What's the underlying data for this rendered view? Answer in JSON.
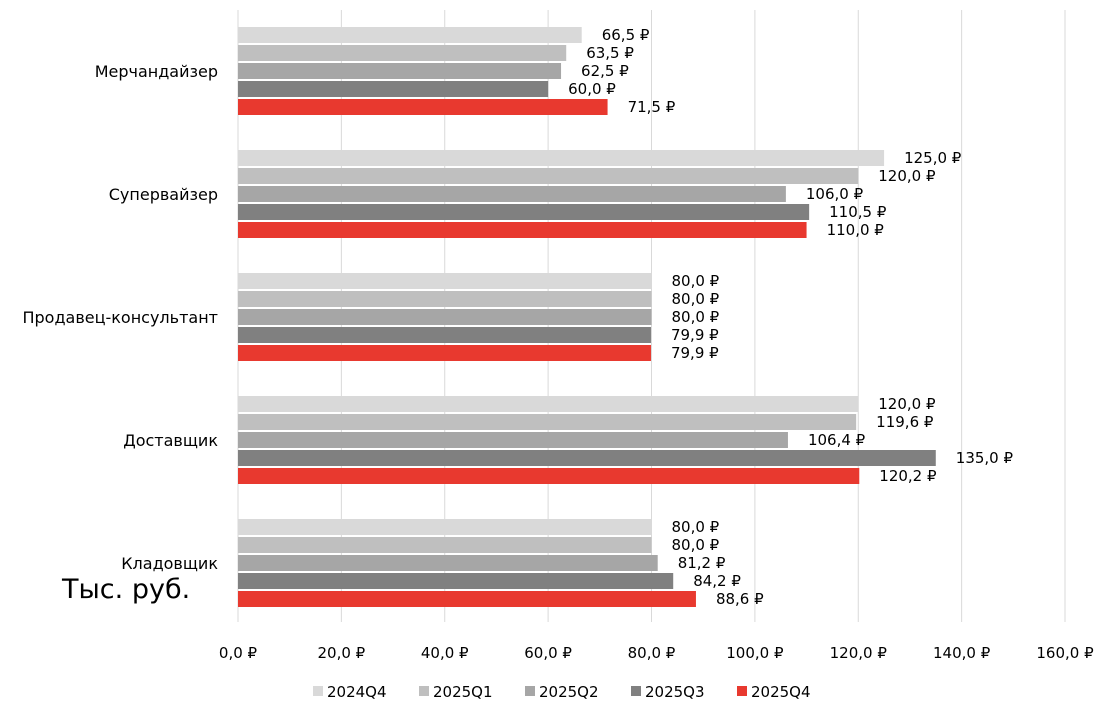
{
  "chart_data": {
    "type": "bar",
    "orientation": "horizontal",
    "unit_label": "Тыс. руб.",
    "value_suffix": " ₽",
    "categories": [
      "Мерчандайзер",
      "Супервайзер",
      "Продавец-консультант",
      "Доставщик",
      "Кладовщик"
    ],
    "series": [
      {
        "name": "2024Q4",
        "color": "#d9d9d9",
        "values": [
          66.5,
          125.0,
          80.0,
          120.0,
          80.0
        ],
        "labels": [
          "66,5 ₽",
          "125,0 ₽",
          "80,0 ₽",
          "120,0 ₽",
          "80,0 ₽"
        ]
      },
      {
        "name": "2025Q1",
        "color": "#bfbfbf",
        "values": [
          63.5,
          120.0,
          80.0,
          119.6,
          80.0
        ],
        "labels": [
          "63,5 ₽",
          "120,0 ₽",
          "80,0 ₽",
          "119,6 ₽",
          "80,0 ₽"
        ]
      },
      {
        "name": "2025Q2",
        "color": "#a6a6a6",
        "values": [
          62.5,
          106.0,
          80.0,
          106.4,
          81.2
        ],
        "labels": [
          "62,5 ₽",
          "106,0 ₽",
          "80,0 ₽",
          "106,4 ₽",
          "81,2 ₽"
        ]
      },
      {
        "name": "2025Q3",
        "color": "#808080",
        "values": [
          60.0,
          110.5,
          79.9,
          135.0,
          84.2
        ],
        "labels": [
          "60,0 ₽",
          "110,5 ₽",
          "79,9 ₽",
          "135,0 ₽",
          "84,2 ₽"
        ]
      },
      {
        "name": "2025Q4",
        "color": "#e8392f",
        "values": [
          71.5,
          110.0,
          79.9,
          120.2,
          88.6
        ],
        "labels": [
          "71,5 ₽",
          "110,0 ₽",
          "79,9 ₽",
          "120,2 ₽",
          "88,6 ₽"
        ]
      }
    ],
    "xlim": [
      0,
      160
    ],
    "x_ticks": [
      0,
      20,
      40,
      60,
      80,
      100,
      120,
      140,
      160
    ],
    "x_tick_labels": [
      "0,0 ₽",
      "20,0 ₽",
      "40,0 ₽",
      "60,0 ₽",
      "80,0 ₽",
      "100,0 ₽",
      "120,0 ₽",
      "140,0 ₽",
      "160,0 ₽"
    ],
    "grid": true,
    "legend_position": "bottom"
  }
}
